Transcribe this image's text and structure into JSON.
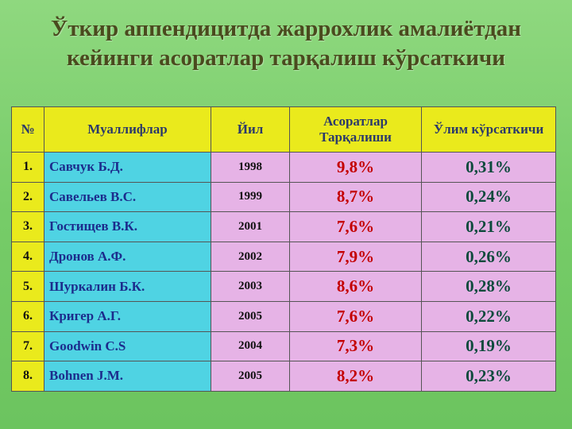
{
  "title": [
    "Ўткир аппендицитда жаррохлик амалиётдан",
    "кейинги асоратлар тарқалиш кўрсаткичи"
  ],
  "table": {
    "header": [
      "№",
      "Муаллифлар",
      "Йил",
      "Асоратлар Тарқалиши",
      "Ўлим кўрсаткичи"
    ],
    "rows": [
      [
        "1.",
        "Савчук Б.Д.",
        "1998",
        "9,8%",
        "0,31%"
      ],
      [
        "2.",
        "Савельев В.С.",
        "1999",
        "8,7%",
        "0,24%"
      ],
      [
        "3.",
        "Гостищев В.К.",
        "2001",
        "7,6%",
        "0,21%"
      ],
      [
        "4.",
        "Дронов А.Ф.",
        "2002",
        "7,9%",
        "0,26%"
      ],
      [
        "5.",
        "Шуркалин Б.К.",
        "2003",
        "8,6%",
        "0,28%"
      ],
      [
        "6.",
        "Кригер А.Г.",
        "2005",
        "7,6%",
        "0,22%"
      ],
      [
        "7.",
        "Goodwin C.S",
        "2004",
        "7,3%",
        "0,19%"
      ],
      [
        "8.",
        "Bohnen J.M.",
        "2005",
        "8,2%",
        "0,23%"
      ]
    ]
  }
}
